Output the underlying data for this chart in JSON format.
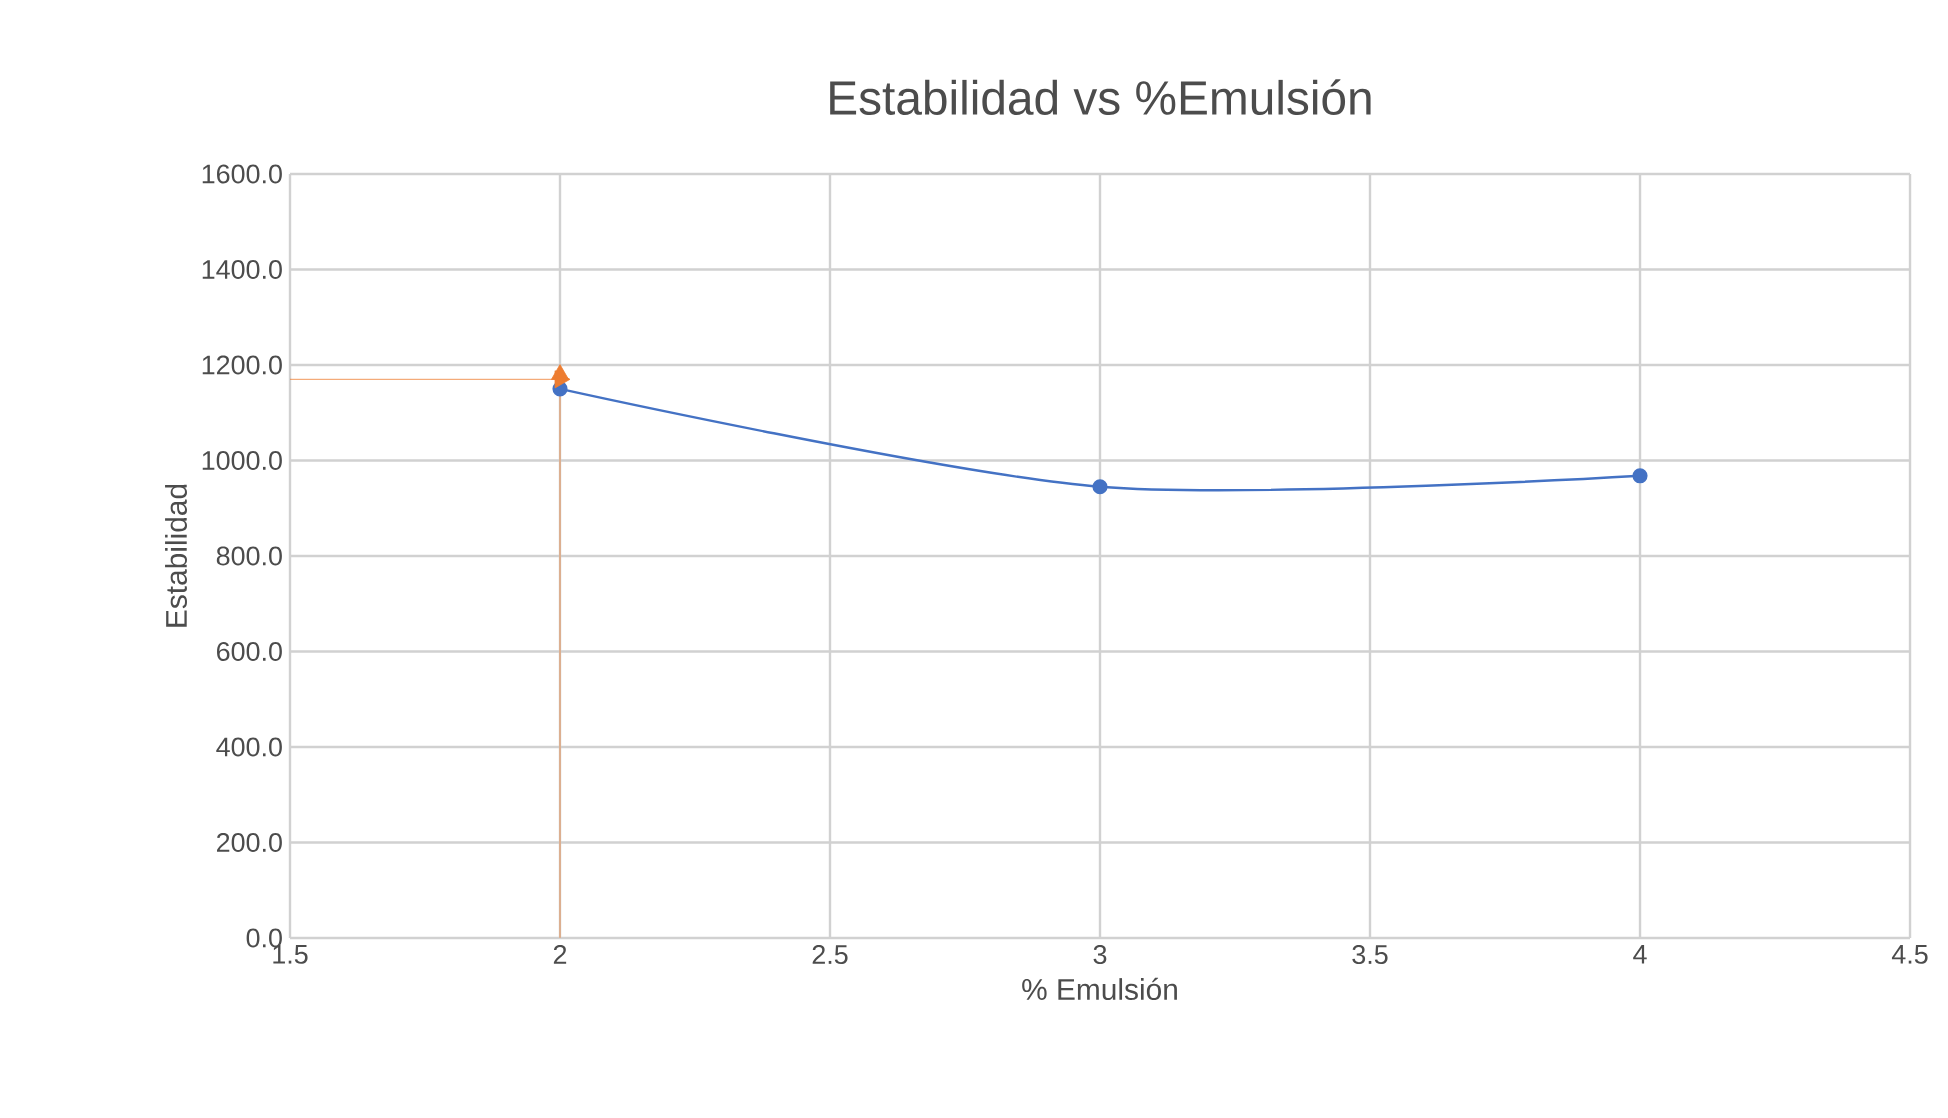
{
  "chart_data": {
    "type": "line",
    "title": "Estabilidad vs %Emulsión",
    "xlabel": "% Emulsión",
    "ylabel": "Estabilidad",
    "series": [
      {
        "color": "#4472c4",
        "x": [
          2,
          3,
          4
        ],
        "values": [
          1150,
          945,
          968
        ],
        "marker": "circle"
      },
      {
        "color": "#ed7d31",
        "x": [
          1.5,
          2
        ],
        "values": [
          1170,
          1170
        ],
        "marker": "triangle"
      },
      {
        "color": "#ed7d31",
        "x": [
          2,
          2
        ],
        "values": [
          0,
          1180
        ],
        "marker": "triangle"
      }
    ],
    "xlim": [
      1.5,
      4.5
    ],
    "xticks": [
      1.5,
      2,
      2.5,
      3,
      3.5,
      4,
      4.5
    ],
    "ylim": [
      0,
      1600
    ],
    "yticks": [
      {
        "value": 0,
        "label": "0.0"
      },
      {
        "value": 200,
        "label": "200.0"
      },
      {
        "value": 400,
        "label": "400.0"
      },
      {
        "value": 600,
        "label": "600.0"
      },
      {
        "value": 800,
        "label": "800.0"
      },
      {
        "value": 1000,
        "label": "1000.0"
      },
      {
        "value": 1200,
        "label": "1200.0"
      },
      {
        "value": 1400,
        "label": "1400.0"
      },
      {
        "value": 1600,
        "label": "1600.0"
      }
    ],
    "grid": true
  }
}
